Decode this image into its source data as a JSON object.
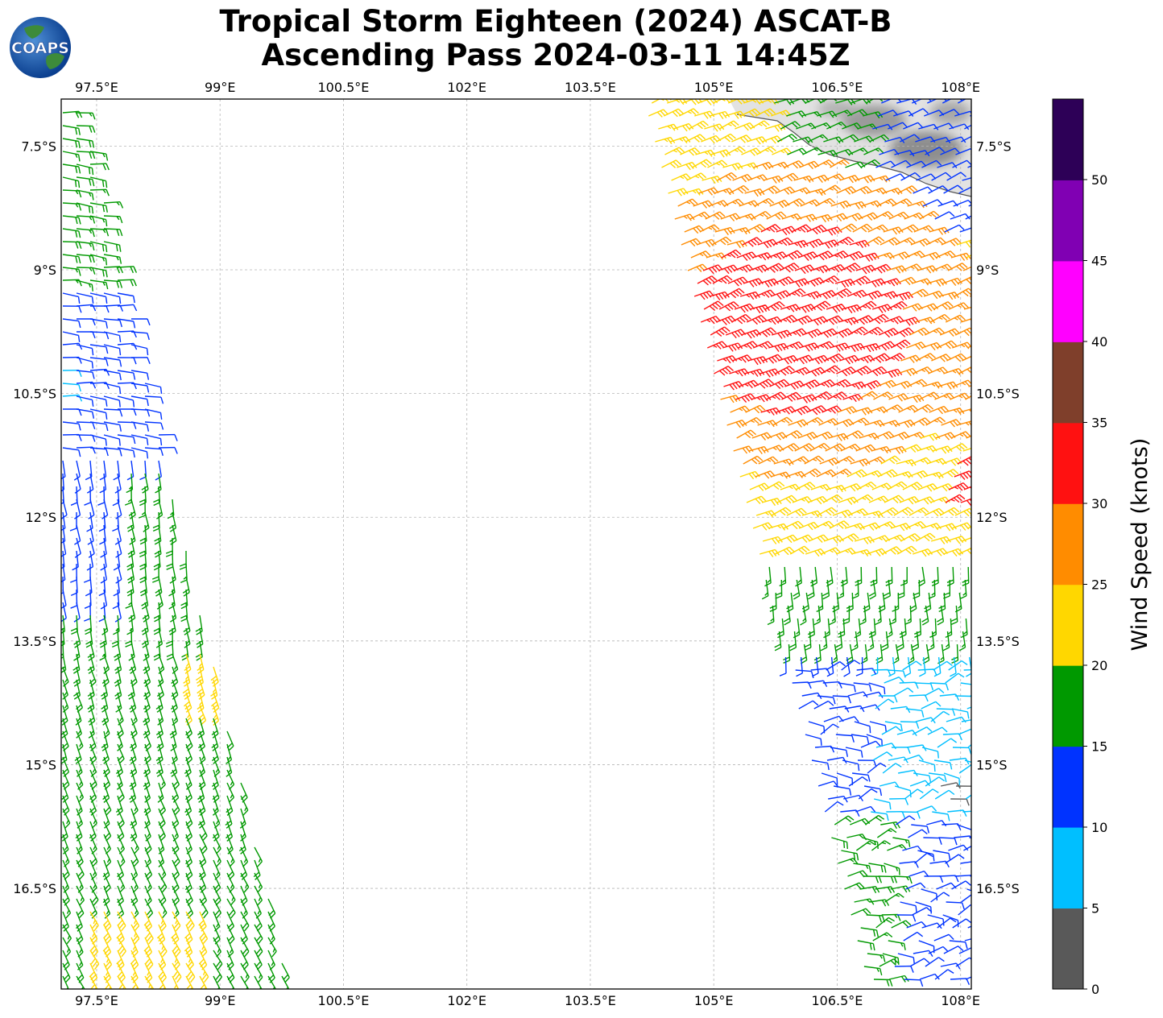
{
  "title": {
    "line1": "Tropical Storm Eighteen (2024) ASCAT-B",
    "line2": "Ascending Pass 2024-03-11 14:45Z"
  },
  "logo": {
    "text": "COAPS",
    "icon": "globe-logo-icon"
  },
  "map": {
    "lon_range": [
      97.07,
      108.13
    ],
    "lat_range": [
      -17.72,
      -6.93
    ],
    "lon_ticks": [
      {
        "value": 97.5,
        "label": "97.5°E"
      },
      {
        "value": 99.0,
        "label": "99°E"
      },
      {
        "value": 100.5,
        "label": "100.5°E"
      },
      {
        "value": 102.0,
        "label": "102°E"
      },
      {
        "value": 103.5,
        "label": "103.5°E"
      },
      {
        "value": 105.0,
        "label": "105°E"
      },
      {
        "value": 106.5,
        "label": "106.5°E"
      },
      {
        "value": 108.0,
        "label": "108°E"
      }
    ],
    "lat_ticks": [
      {
        "value": -7.5,
        "label": "7.5°S"
      },
      {
        "value": -9.0,
        "label": "9°S"
      },
      {
        "value": -10.5,
        "label": "10.5°S"
      },
      {
        "value": -12.0,
        "label": "12°S"
      },
      {
        "value": -13.5,
        "label": "13.5°S"
      },
      {
        "value": -15.0,
        "label": "15°S"
      },
      {
        "value": -16.5,
        "label": "16.5°S"
      }
    ],
    "grid": true,
    "land": "coastline of Java, top-right corner"
  },
  "colorbar": {
    "title": "Wind Speed (knots)",
    "ticks": [
      "0",
      "5",
      "10",
      "15",
      "20",
      "25",
      "30",
      "35",
      "40",
      "45",
      "50"
    ],
    "colors": [
      "#595959",
      "#00bfff",
      "#0033ff",
      "#009900",
      "#ffd700",
      "#ff8c00",
      "#ff1111",
      "#7f3f2b",
      "#ff00ff",
      "#8000b3",
      "#2d0057"
    ]
  }
}
